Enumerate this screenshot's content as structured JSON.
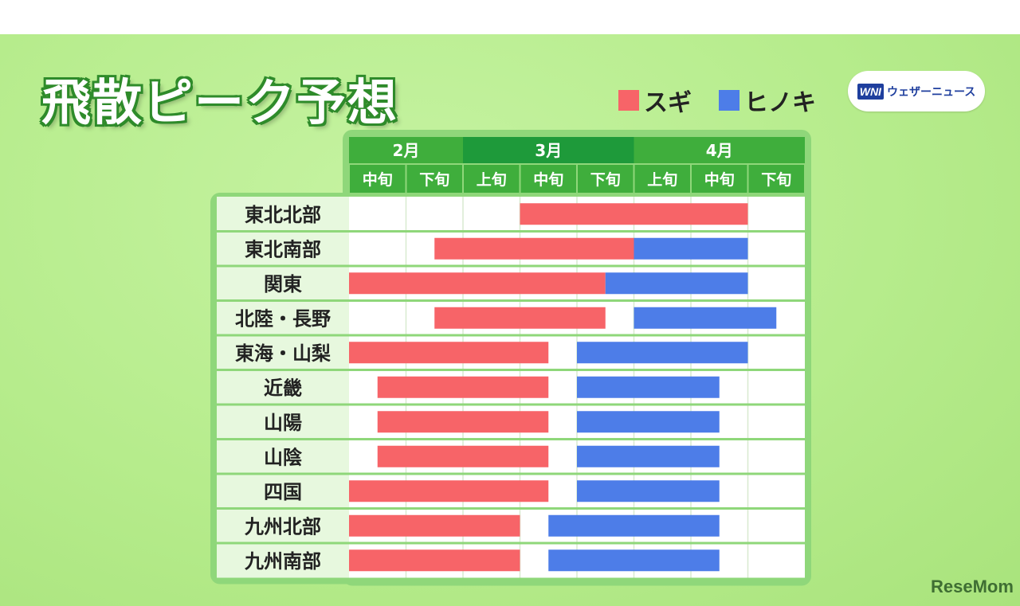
{
  "title": "飛散ピーク予想",
  "legend": [
    {
      "label": "スギ",
      "color": "#f76468"
    },
    {
      "label": "ヒノキ",
      "color": "#4d7de8"
    }
  ],
  "logo": {
    "mark": "WNI",
    "text": "ウェザーニュース"
  },
  "watermark": "ReseMom",
  "chart_data": {
    "type": "gantt",
    "months": [
      {
        "label": "2月",
        "periods": 2
      },
      {
        "label": "3月",
        "periods": 3
      },
      {
        "label": "4月",
        "periods": 3
      }
    ],
    "periods": [
      "中旬",
      "下旬",
      "上旬",
      "中旬",
      "下旬",
      "上旬",
      "中旬",
      "下旬"
    ],
    "rows": [
      {
        "region": "東北北部",
        "sugi": [
          3,
          7
        ],
        "hinoki": null
      },
      {
        "region": "東北南部",
        "sugi": [
          1.5,
          5
        ],
        "hinoki": [
          5,
          7
        ]
      },
      {
        "region": "関東",
        "sugi": [
          0,
          4.5
        ],
        "hinoki": [
          4.5,
          7
        ]
      },
      {
        "region": "北陸・長野",
        "sugi": [
          1.5,
          4.5
        ],
        "hinoki": [
          5,
          7.5
        ]
      },
      {
        "region": "東海・山梨",
        "sugi": [
          0,
          3.5
        ],
        "hinoki": [
          4,
          7
        ]
      },
      {
        "region": "近畿",
        "sugi": [
          0.5,
          3.5
        ],
        "hinoki": [
          4,
          6.5
        ]
      },
      {
        "region": "山陽",
        "sugi": [
          0.5,
          3.5
        ],
        "hinoki": [
          4,
          6.5
        ]
      },
      {
        "region": "山陰",
        "sugi": [
          0.5,
          3.5
        ],
        "hinoki": [
          4,
          6.5
        ]
      },
      {
        "region": "四国",
        "sugi": [
          0,
          3.5
        ],
        "hinoki": [
          4,
          6.5
        ]
      },
      {
        "region": "九州北部",
        "sugi": [
          0,
          3
        ],
        "hinoki": [
          3.5,
          6.5
        ]
      },
      {
        "region": "九州南部",
        "sugi": [
          0,
          3
        ],
        "hinoki": [
          3.5,
          6.5
        ]
      }
    ],
    "colors": {
      "sugi": "#f76468",
      "hinoki": "#4d7de8",
      "header_dark": "#1e9a3a",
      "header": "#3fae3c"
    }
  }
}
